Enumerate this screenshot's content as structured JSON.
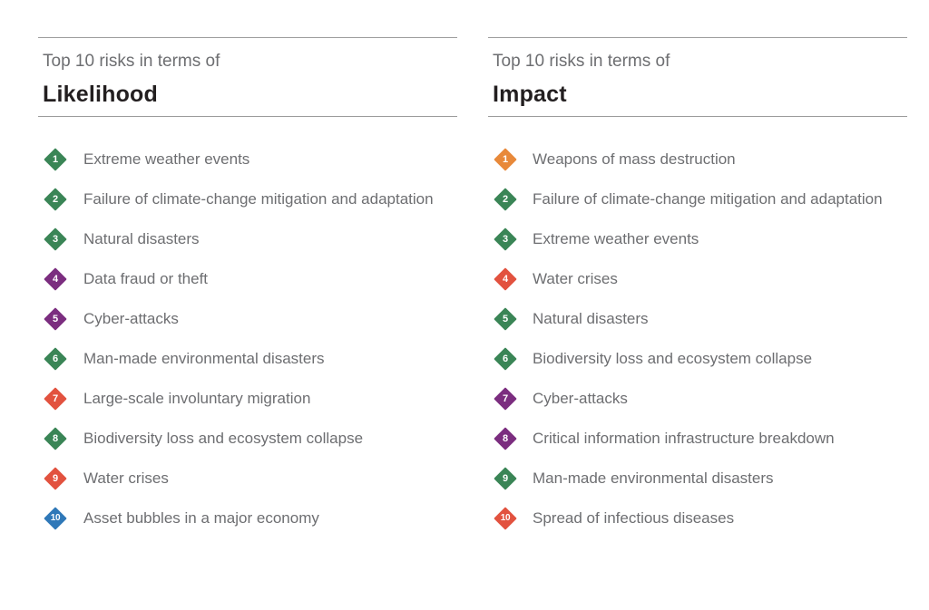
{
  "likelihood": {
    "subtitle": "Top 10 risks in terms of",
    "title": "Likelihood",
    "items": [
      {
        "rank": "1",
        "label": "Extreme weather events",
        "color": "#3a8556"
      },
      {
        "rank": "2",
        "label": "Failure of climate-change mitigation and adaptation",
        "color": "#3a8556"
      },
      {
        "rank": "3",
        "label": "Natural disasters",
        "color": "#3a8556"
      },
      {
        "rank": "4",
        "label": "Data fraud or theft",
        "color": "#7b2d7f"
      },
      {
        "rank": "5",
        "label": "Cyber-attacks",
        "color": "#7b2d7f"
      },
      {
        "rank": "6",
        "label": "Man-made environmental disasters",
        "color": "#3a8556"
      },
      {
        "rank": "7",
        "label": "Large-scale involuntary migration",
        "color": "#e2523f"
      },
      {
        "rank": "8",
        "label": "Biodiversity loss and ecosystem collapse",
        "color": "#3a8556"
      },
      {
        "rank": "9",
        "label": "Water crises",
        "color": "#e2523f"
      },
      {
        "rank": "10",
        "label": "Asset bubbles in a major economy",
        "color": "#2f78b8"
      }
    ]
  },
  "impact": {
    "subtitle": "Top 10 risks in terms of",
    "title": "Impact",
    "items": [
      {
        "rank": "1",
        "label": "Weapons of mass destruction",
        "color": "#e8893a"
      },
      {
        "rank": "2",
        "label": "Failure of climate-change mitigation and adaptation",
        "color": "#3a8556"
      },
      {
        "rank": "3",
        "label": "Extreme weather events",
        "color": "#3a8556"
      },
      {
        "rank": "4",
        "label": "Water crises",
        "color": "#e2523f"
      },
      {
        "rank": "5",
        "label": "Natural disasters",
        "color": "#3a8556"
      },
      {
        "rank": "6",
        "label": "Biodiversity loss and ecosystem collapse",
        "color": "#3a8556"
      },
      {
        "rank": "7",
        "label": "Cyber-attacks",
        "color": "#7b2d7f"
      },
      {
        "rank": "8",
        "label": "Critical information infrastructure breakdown",
        "color": "#7b2d7f"
      },
      {
        "rank": "9",
        "label": "Man-made environmental disasters",
        "color": "#3a8556"
      },
      {
        "rank": "10",
        "label": "Spread of infectious diseases",
        "color": "#e2523f"
      }
    ]
  }
}
